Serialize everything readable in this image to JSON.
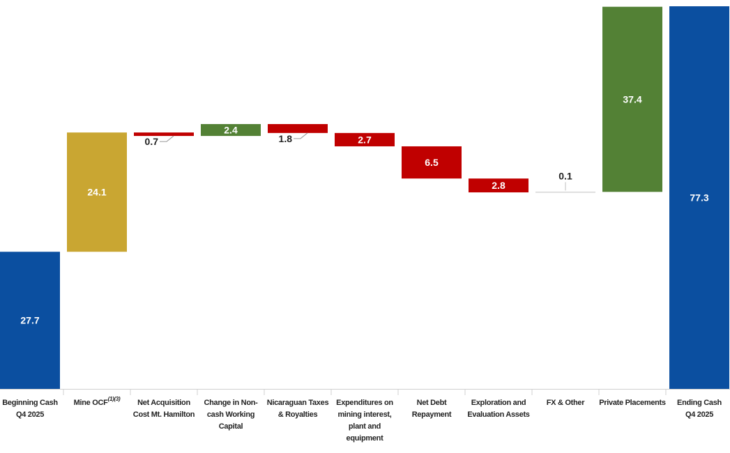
{
  "chart_data": {
    "type": "waterfall",
    "categories": [
      "Beginning Cash\nQ4 2025",
      "Mine OCF",
      "Net Acquisition\nCost Mt. Hamilton",
      "Change in Non-\ncash Working\nCapital",
      "Nicaraguan Taxes\n& Royalties",
      "Expenditures on\nmining interest,\nplant and\nequipment",
      "Net Debt\nRepayment",
      "Exploration and\nEvaluation Assets",
      "FX & Other",
      "Private Placements",
      "Ending Cash\nQ4 2025"
    ],
    "category_superscripts": [
      null,
      "(1)(3)",
      null,
      null,
      null,
      null,
      null,
      null,
      null,
      null,
      null
    ],
    "values": [
      27.7,
      24.1,
      0.7,
      2.4,
      1.8,
      2.7,
      6.5,
      2.8,
      0.1,
      37.4,
      77.3
    ],
    "kinds": [
      "total",
      "increase",
      "decrease",
      "increase",
      "decrease",
      "decrease",
      "decrease",
      "decrease",
      "increase",
      "increase",
      "total"
    ],
    "colors": [
      "#0b4fa0",
      "#c9a632",
      "#c00000",
      "#538135",
      "#c00000",
      "#c00000",
      "#c00000",
      "#c00000",
      "#bfbfbf",
      "#538135",
      "#0b4fa0"
    ],
    "ylim": [
      0,
      77.3
    ]
  }
}
